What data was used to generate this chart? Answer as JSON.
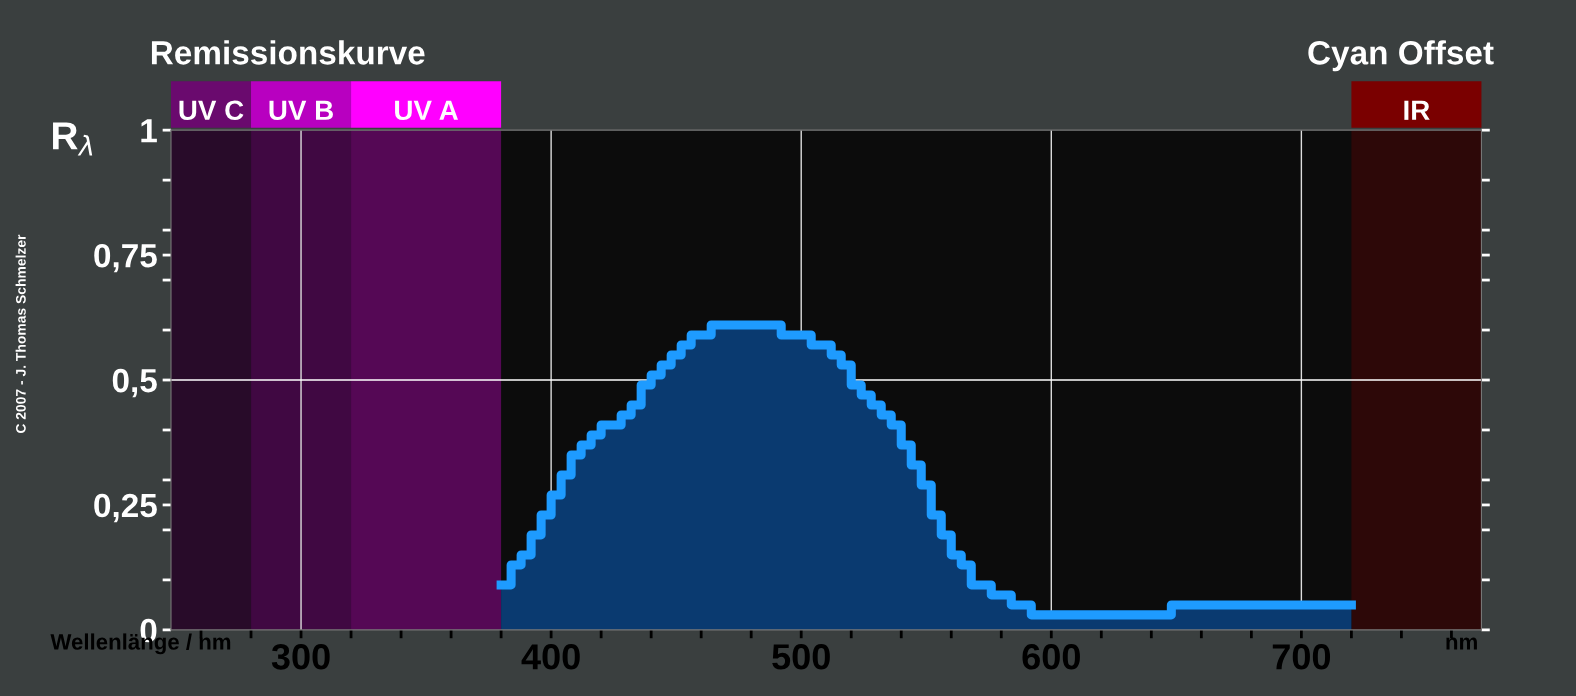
{
  "chart_data": {
    "type": "step",
    "title": "Remissionskurve",
    "subtitle": "Cyan Offset",
    "xlabel": "Wellenlänge / nm",
    "ylabel": "R$_{λ}$",
    "annotations": [
      "nm",
      "C 2007 - J. Thomas Schmelzer"
    ],
    "x": [
      380,
      384,
      388,
      392,
      396,
      400,
      404,
      408,
      412,
      416,
      420,
      428,
      432,
      436,
      440,
      444,
      448,
      452,
      456,
      464,
      492,
      504,
      512,
      516,
      520,
      524,
      528,
      532,
      536,
      540,
      544,
      548,
      552,
      556,
      560,
      564,
      568,
      576,
      584,
      592,
      648,
      720
    ],
    "series": [
      {
        "color": "#1e9bff",
        "values": [
          0.09,
          0.13,
          0.15,
          0.19,
          0.23,
          0.27,
          0.31,
          0.35,
          0.37,
          0.39,
          0.41,
          0.43,
          0.45,
          0.49,
          0.51,
          0.53,
          0.55,
          0.57,
          0.59,
          0.61,
          0.59,
          0.57,
          0.55,
          0.53,
          0.49,
          0.47,
          0.45,
          0.43,
          0.41,
          0.37,
          0.33,
          0.29,
          0.23,
          0.19,
          0.15,
          0.13,
          0.09,
          0.07,
          0.05,
          0.03,
          0.05,
          0.05
        ]
      }
    ],
    "xlim": [
      248,
      772
    ],
    "ylim": [
      0,
      1
    ],
    "xticks": [
      {
        "value": 260,
        "label": null
      },
      {
        "value": 280,
        "label": null
      },
      300,
      {
        "value": 320,
        "label": null
      },
      {
        "value": 340,
        "label": null
      },
      {
        "value": 360,
        "label": null
      },
      {
        "value": 380,
        "label": null
      },
      400,
      {
        "value": 420,
        "label": null
      },
      {
        "value": 440,
        "label": null
      },
      {
        "value": 460,
        "label": null
      },
      {
        "value": 480,
        "label": null
      },
      500,
      {
        "value": 520,
        "label": null
      },
      {
        "value": 540,
        "label": null
      },
      {
        "value": 560,
        "label": null
      },
      {
        "value": 580,
        "label": null
      },
      600,
      {
        "value": 620,
        "label": null
      },
      {
        "value": 640,
        "label": null
      },
      {
        "value": 660,
        "label": null
      },
      {
        "value": 680,
        "label": null
      },
      700,
      {
        "value": 720,
        "label": null
      },
      {
        "value": 740,
        "label": null
      },
      {
        "value": 760,
        "label": null
      }
    ],
    "yticks": [
      {
        "value": 0,
        "label": "0"
      },
      {
        "value": 0.1,
        "label": null
      },
      {
        "value": 0.2,
        "label": null
      },
      {
        "value": 0.25,
        "label": "0,25"
      },
      {
        "value": 0.3,
        "label": null
      },
      {
        "value": 0.4,
        "label": null
      },
      {
        "value": 0.5,
        "label": "0,5"
      },
      {
        "value": 0.6,
        "label": null
      },
      {
        "value": 0.7,
        "label": null
      },
      {
        "value": 0.75,
        "label": "0,75"
      },
      {
        "value": 0.8,
        "label": null
      },
      {
        "value": 0.9,
        "label": null
      },
      {
        "value": 1,
        "label": "1"
      }
    ],
    "grid": "x",
    "ref_lines": [
      {
        "axis": "y",
        "value": 0.5,
        "color": "#ffffff"
      }
    ],
    "bands": [
      {
        "axis": "x",
        "from": 248,
        "to": 280,
        "label": "UV C",
        "color": "#6a0a6e"
      },
      {
        "axis": "x",
        "from": 280,
        "to": 320,
        "label": "UV B",
        "color": "#b800c0"
      },
      {
        "axis": "x",
        "from": 320,
        "to": 380,
        "label": "UV A",
        "color": "#ff00ff"
      },
      {
        "axis": "x",
        "from": 720,
        "to": 772,
        "label": "IR",
        "color": "#7a0000"
      }
    ]
  }
}
